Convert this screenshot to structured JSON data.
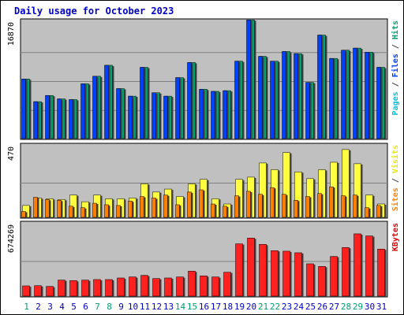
{
  "chart_data": {
    "type": "bar",
    "title": "Daily usage for October 2023",
    "categories": [
      "1",
      "2",
      "3",
      "4",
      "5",
      "6",
      "7",
      "8",
      "9",
      "10",
      "11",
      "12",
      "13",
      "14",
      "15",
      "16",
      "17",
      "18",
      "19",
      "20",
      "21",
      "22",
      "23",
      "24",
      "25",
      "26",
      "27",
      "28",
      "29",
      "30",
      "31"
    ],
    "weekend_days": [
      "1",
      "7",
      "8",
      "14",
      "15",
      "21",
      "22",
      "28",
      "29"
    ],
    "panels": [
      {
        "id": "hits",
        "max_label": "16870",
        "ylim": [
          0,
          16870
        ],
        "right_label": [
          "Pages",
          " / ",
          "Files",
          " / ",
          "Hits"
        ],
        "right_label_colors": [
          "#00c0e0",
          "#404040",
          "#0040ff",
          "#404040",
          "#00a070"
        ],
        "series": [
          {
            "name": "Hits",
            "color": "#00a070",
            "values": [
              8800,
              5500,
              6400,
              5900,
              5800,
              8100,
              9200,
              10800,
              7400,
              6300,
              10500,
              6800,
              6300,
              9000,
              11200,
              7300,
              7000,
              7100,
              11400,
              17400,
              12100,
              11400,
              12800,
              12500,
              8300,
              15200,
              11800,
              13000,
              13300,
              12700,
              10500
            ]
          },
          {
            "name": "Files",
            "color": "#0040ff",
            "values": [
              8800,
              5500,
              6400,
              5900,
              5800,
              8100,
              9200,
              10800,
              7400,
              6300,
              10500,
              6800,
              6300,
              9000,
              11200,
              7300,
              7000,
              7100,
              11400,
              17400,
              12100,
              11400,
              12800,
              12500,
              8300,
              15200,
              11800,
              13000,
              13300,
              12700,
              10500
            ]
          },
          {
            "name": "Pages",
            "color": "#00c0e0",
            "values": [
              0,
              0,
              0,
              0,
              0,
              0,
              0,
              0,
              0,
              0,
              0,
              0,
              0,
              0,
              0,
              0,
              0,
              0,
              0,
              0,
              0,
              0,
              0,
              0,
              0,
              0,
              0,
              0,
              0,
              0,
              0
            ]
          }
        ]
      },
      {
        "id": "visits",
        "max_label": "470",
        "ylim": [
          0,
          470
        ],
        "right_label": [
          "Sites",
          " / ",
          "Visits"
        ],
        "right_label_colors": [
          "#ff8000",
          "#404040",
          "#e8e800"
        ],
        "series": [
          {
            "name": "Visits",
            "color": "#ffff40",
            "values": [
              85,
              135,
              130,
              125,
              155,
              110,
              155,
              130,
              130,
              135,
              230,
              175,
              195,
              145,
              230,
              260,
              130,
              95,
              260,
              275,
              370,
              325,
              440,
              310,
              265,
              325,
              375,
              460,
              365,
              155,
              95
            ]
          },
          {
            "name": "Sites",
            "color": "#ff8000",
            "values": [
              45,
              140,
              125,
              120,
              80,
              70,
              100,
              90,
              85,
              115,
              145,
              135,
              155,
              90,
              175,
              190,
              95,
              80,
              150,
              180,
              160,
              205,
              160,
              120,
              145,
              165,
              210,
              150,
              155,
              70,
              85
            ]
          }
        ]
      },
      {
        "id": "kbytes",
        "max_label": "674269",
        "ylim": [
          0,
          674269
        ],
        "right_label": [
          "KBytes"
        ],
        "right_label_colors": [
          "#e00000"
        ],
        "series": [
          {
            "name": "KBytes",
            "color": "#ff2020",
            "values": [
              105000,
              107000,
              100000,
              160000,
              155000,
              160000,
              165000,
              165000,
              180000,
              190000,
              205000,
              175000,
              180000,
              190000,
              245000,
              200000,
              190000,
              235000,
              505000,
              560000,
              500000,
              440000,
              435000,
              420000,
              315000,
              290000,
              385000,
              470000,
              600000,
              580000,
              455000
            ]
          }
        ]
      }
    ],
    "colors": {
      "title": "#0000c0",
      "background": "#c0c0c0",
      "frame": "#000000",
      "gridline": "#808080",
      "weekday_label": "#0000c0",
      "weekend_label": "#00a070"
    }
  }
}
